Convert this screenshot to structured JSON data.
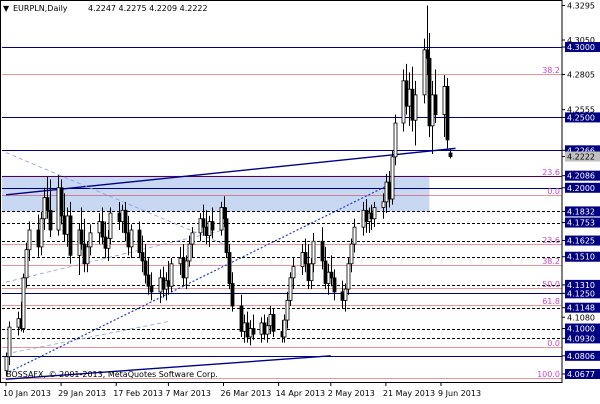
{
  "header": {
    "arrow_glyph": "▼",
    "symbol_timeframe": "EURPLN,Daily",
    "ohlc": "4.2247 4.2275 4.2209 4.2222"
  },
  "watermark": "BOSSAFX, © 2001-2013, MetaQuotes Software Corp.",
  "colors": {
    "background": "#ffffff",
    "candle": "#000000",
    "level_line": "#000080",
    "ma_trend_line": "#00008b",
    "fibo_line": "#cc0000",
    "fibo_label": "#cc44cc",
    "dotted_trend": "#1f3bd6",
    "light_trend": "#8a9ee0",
    "zone_fill": "#c8d7f2",
    "price_box": "#000080",
    "current_price_box": "#c0c0c0"
  },
  "chart_data": {
    "type": "candlestick",
    "symbol": "EURPLN",
    "timeframe": "Daily",
    "ylim": [
      4.062,
      4.332
    ],
    "x_tick_labels": [
      "10 Jan 2013",
      "29 Jan 2013",
      "17 Feb 2013",
      "7 Mar 2013",
      "26 Mar 2013",
      "14 Apr 2013",
      "2 May 2013",
      "21 May 2013",
      "9 Jun 2013"
    ],
    "y_tick_labels": [
      {
        "value": 4.3295,
        "label": "4.3295",
        "boxed": false
      },
      {
        "value": 4.305,
        "label": "4.3050",
        "boxed": false
      },
      {
        "value": 4.3,
        "label": "4.3000",
        "boxed": true
      },
      {
        "value": 4.2805,
        "label": "4.2805",
        "boxed": false
      },
      {
        "value": 4.2555,
        "label": "4.2555",
        "boxed": false
      },
      {
        "value": 4.25,
        "label": "4.2500",
        "boxed": true
      },
      {
        "value": 4.2266,
        "label": "4.2266",
        "boxed": true
      },
      {
        "value": 4.2222,
        "label": "4.2222",
        "boxed": "current"
      },
      {
        "value": 4.2086,
        "label": "4.2086",
        "boxed": true
      },
      {
        "value": 4.2,
        "label": "4.2000",
        "boxed": true
      },
      {
        "value": 4.1832,
        "label": "4.1832",
        "boxed": true
      },
      {
        "value": 4.1753,
        "label": "4.1753",
        "boxed": true
      },
      {
        "value": 4.1625,
        "label": "4.1625",
        "boxed": true
      },
      {
        "value": 4.151,
        "label": "4.1510",
        "boxed": true
      },
      {
        "value": 4.131,
        "label": "4.1310",
        "boxed": true
      },
      {
        "value": 4.125,
        "label": "4.1250",
        "boxed": true
      },
      {
        "value": 4.1148,
        "label": "4.1148",
        "boxed": true
      },
      {
        "value": 4.108,
        "label": "4.1080",
        "boxed": false
      },
      {
        "value": 4.1,
        "label": "4.1000",
        "boxed": true
      },
      {
        "value": 4.093,
        "label": "4.0930",
        "boxed": true
      },
      {
        "value": 4.0806,
        "label": "4.0806",
        "boxed": true
      },
      {
        "value": 4.0677,
        "label": "4.0677",
        "boxed": true
      }
    ],
    "horizontal_levels": [
      {
        "value": 4.3,
        "style": "solid",
        "color": "#000080"
      },
      {
        "value": 4.25,
        "style": "solid",
        "color": "#000080"
      },
      {
        "value": 4.2266,
        "style": "solid",
        "color": "#000080"
      },
      {
        "value": 4.2086,
        "style": "solid",
        "color": "#000080"
      },
      {
        "value": 4.2,
        "style": "solid",
        "color": "#000080"
      },
      {
        "value": 4.1832,
        "style": "dashed",
        "color": "#000000"
      },
      {
        "value": 4.1753,
        "style": "dashed",
        "color": "#000000"
      },
      {
        "value": 4.1625,
        "style": "dashed",
        "color": "#000000"
      },
      {
        "value": 4.151,
        "style": "dashed",
        "color": "#000000"
      },
      {
        "value": 4.131,
        "style": "dashed",
        "color": "#000000"
      },
      {
        "value": 4.125,
        "style": "solid",
        "color": "#000080"
      },
      {
        "value": 4.1148,
        "style": "dashed",
        "color": "#000000"
      },
      {
        "value": 4.1,
        "style": "dashed",
        "color": "#000000"
      },
      {
        "value": 4.093,
        "style": "dashed",
        "color": "#000000"
      },
      {
        "value": 4.0806,
        "style": "solid",
        "color": "#000080"
      }
    ],
    "fibonacci": [
      {
        "label": "38.2",
        "value": 4.2805
      },
      {
        "label": "23.6",
        "value": 4.2086
      },
      {
        "label": "0.0",
        "value": 4.195
      },
      {
        "label": "23.6",
        "value": 4.16
      },
      {
        "label": "38.2",
        "value": 4.145
      },
      {
        "label": "50.0",
        "value": 4.129
      },
      {
        "label": "61.8",
        "value": 4.117
      },
      {
        "label": "0.0",
        "value": 4.087
      },
      {
        "label": "100.0",
        "value": 4.065
      }
    ],
    "zone": {
      "from": 4.2086,
      "to": 4.1832,
      "x_from": "10 Jan 2013",
      "x_to": "5 Jun 2013"
    },
    "trend_lines": [
      {
        "style": "solid",
        "from": [
          "10 Jan 2013",
          4.195
        ],
        "to": [
          "14 Jun 2013",
          4.228
        ]
      },
      {
        "style": "solid",
        "from": [
          "10 Jan 2013",
          4.064
        ],
        "to": [
          "2 May 2013",
          4.0806
        ]
      },
      {
        "style": "dotted",
        "from": [
          "10 Jan 2013",
          4.068
        ],
        "to": [
          "21 May 2013",
          4.201
        ]
      },
      {
        "style": "dashed-light",
        "from": [
          "10 Jan 2013",
          4.225
        ],
        "to": [
          "26 Mar 2013",
          4.16
        ]
      },
      {
        "style": "dashed-light",
        "from": [
          "10 Jan 2013",
          4.133
        ],
        "to": [
          "26 Mar 2013",
          4.17
        ]
      },
      {
        "style": "dashed-light",
        "from": [
          "10 Jan 2013",
          4.082
        ],
        "to": [
          "7 Mar 2013",
          4.105
        ]
      }
    ],
    "candles": [
      {
        "t": "10 Jan 2013",
        "o": 4.07,
        "h": 4.083,
        "l": 4.066,
        "c": 4.08
      },
      {
        "t": "11 Jan 2013",
        "o": 4.08,
        "h": 4.105,
        "l": 4.074,
        "c": 4.101
      },
      {
        "t": "14 Jan 2013",
        "o": 4.101,
        "h": 4.112,
        "l": 4.095,
        "c": 4.107
      },
      {
        "t": "15 Jan 2013",
        "o": 4.107,
        "h": 4.119,
        "l": 4.098,
        "c": 4.1
      },
      {
        "t": "16 Jan 2013",
        "o": 4.1,
        "h": 4.139,
        "l": 4.097,
        "c": 4.136
      },
      {
        "t": "17 Jan 2013",
        "o": 4.136,
        "h": 4.161,
        "l": 4.129,
        "c": 4.156
      },
      {
        "t": "18 Jan 2013",
        "o": 4.156,
        "h": 4.176,
        "l": 4.148,
        "c": 4.17
      },
      {
        "t": "21 Jan 2013",
        "o": 4.17,
        "h": 4.181,
        "l": 4.151,
        "c": 4.158
      },
      {
        "t": "22 Jan 2013",
        "o": 4.158,
        "h": 4.183,
        "l": 4.152,
        "c": 4.178
      },
      {
        "t": "23 Jan 2013",
        "o": 4.178,
        "h": 4.2,
        "l": 4.17,
        "c": 4.193
      },
      {
        "t": "24 Jan 2013",
        "o": 4.193,
        "h": 4.208,
        "l": 4.178,
        "c": 4.184
      },
      {
        "t": "25 Jan 2013",
        "o": 4.184,
        "h": 4.206,
        "l": 4.165,
        "c": 4.17
      },
      {
        "t": "28 Jan 2013",
        "o": 4.17,
        "h": 4.209,
        "l": 4.166,
        "c": 4.2
      },
      {
        "t": "29 Jan 2013",
        "o": 4.2,
        "h": 4.206,
        "l": 4.174,
        "c": 4.18
      },
      {
        "t": "30 Jan 2013",
        "o": 4.18,
        "h": 4.196,
        "l": 4.162,
        "c": 4.167
      },
      {
        "t": "31 Jan 2013",
        "o": 4.167,
        "h": 4.186,
        "l": 4.158,
        "c": 4.18
      },
      {
        "t": "1 Feb 2013",
        "o": 4.18,
        "h": 4.19,
        "l": 4.146,
        "c": 4.152
      },
      {
        "t": "4 Feb 2013",
        "o": 4.152,
        "h": 4.175,
        "l": 4.138,
        "c": 4.17
      },
      {
        "t": "5 Feb 2013",
        "o": 4.17,
        "h": 4.186,
        "l": 4.156,
        "c": 4.16
      },
      {
        "t": "6 Feb 2013",
        "o": 4.16,
        "h": 4.178,
        "l": 4.14,
        "c": 4.146
      },
      {
        "t": "7 Feb 2013",
        "o": 4.146,
        "h": 4.162,
        "l": 4.14,
        "c": 4.158
      },
      {
        "t": "8 Feb 2013",
        "o": 4.158,
        "h": 4.174,
        "l": 4.152,
        "c": 4.168
      },
      {
        "t": "11 Feb 2013",
        "o": 4.168,
        "h": 4.182,
        "l": 4.16,
        "c": 4.176
      },
      {
        "t": "12 Feb 2013",
        "o": 4.176,
        "h": 4.186,
        "l": 4.16,
        "c": 4.165
      },
      {
        "t": "13 Feb 2013",
        "o": 4.165,
        "h": 4.176,
        "l": 4.15,
        "c": 4.157
      },
      {
        "t": "14 Feb 2013",
        "o": 4.157,
        "h": 4.17,
        "l": 4.148,
        "c": 4.164
      },
      {
        "t": "15 Feb 2013",
        "o": 4.164,
        "h": 4.186,
        "l": 4.16,
        "c": 4.182
      },
      {
        "t": "18 Feb 2013",
        "o": 4.182,
        "h": 4.19,
        "l": 4.17,
        "c": 4.176
      },
      {
        "t": "19 Feb 2013",
        "o": 4.176,
        "h": 4.188,
        "l": 4.168,
        "c": 4.184
      },
      {
        "t": "20 Feb 2013",
        "o": 4.184,
        "h": 4.19,
        "l": 4.162,
        "c": 4.168
      },
      {
        "t": "21 Feb 2013",
        "o": 4.168,
        "h": 4.18,
        "l": 4.152,
        "c": 4.158
      },
      {
        "t": "22 Feb 2013",
        "o": 4.158,
        "h": 4.174,
        "l": 4.15,
        "c": 4.17
      },
      {
        "t": "25 Feb 2013",
        "o": 4.17,
        "h": 4.176,
        "l": 4.15,
        "c": 4.154
      },
      {
        "t": "26 Feb 2013",
        "o": 4.154,
        "h": 4.166,
        "l": 4.14,
        "c": 4.148
      },
      {
        "t": "27 Feb 2013",
        "o": 4.148,
        "h": 4.16,
        "l": 4.132,
        "c": 4.138
      },
      {
        "t": "28 Feb 2013",
        "o": 4.138,
        "h": 4.15,
        "l": 4.124,
        "c": 4.13
      },
      {
        "t": "1 Mar 2013",
        "o": 4.13,
        "h": 4.14,
        "l": 4.12,
        "c": 4.126
      },
      {
        "t": "4 Mar 2013",
        "o": 4.126,
        "h": 4.142,
        "l": 4.118,
        "c": 4.136
      },
      {
        "t": "5 Mar 2013",
        "o": 4.136,
        "h": 4.144,
        "l": 4.122,
        "c": 4.128
      },
      {
        "t": "6 Mar 2013",
        "o": 4.128,
        "h": 4.14,
        "l": 4.12,
        "c": 4.134
      },
      {
        "t": "7 Mar 2013",
        "o": 4.134,
        "h": 4.148,
        "l": 4.124,
        "c": 4.13
      },
      {
        "t": "8 Mar 2013",
        "o": 4.13,
        "h": 4.15,
        "l": 4.126,
        "c": 4.146
      },
      {
        "t": "11 Mar 2013",
        "o": 4.146,
        "h": 4.158,
        "l": 4.138,
        "c": 4.15
      },
      {
        "t": "12 Mar 2013",
        "o": 4.15,
        "h": 4.16,
        "l": 4.13,
        "c": 4.136
      },
      {
        "t": "13 Mar 2013",
        "o": 4.136,
        "h": 4.152,
        "l": 4.128,
        "c": 4.148
      },
      {
        "t": "14 Mar 2013",
        "o": 4.148,
        "h": 4.166,
        "l": 4.144,
        "c": 4.16
      },
      {
        "t": "15 Mar 2013",
        "o": 4.16,
        "h": 4.172,
        "l": 4.15,
        "c": 4.168
      },
      {
        "t": "18 Mar 2013",
        "o": 4.168,
        "h": 4.182,
        "l": 4.162,
        "c": 4.178
      },
      {
        "t": "19 Mar 2013",
        "o": 4.178,
        "h": 4.188,
        "l": 4.166,
        "c": 4.172
      },
      {
        "t": "20 Mar 2013",
        "o": 4.172,
        "h": 4.184,
        "l": 4.16,
        "c": 4.166
      },
      {
        "t": "21 Mar 2013",
        "o": 4.166,
        "h": 4.18,
        "l": 4.158,
        "c": 4.176
      },
      {
        "t": "22 Mar 2013",
        "o": 4.176,
        "h": 4.186,
        "l": 4.164,
        "c": 4.17
      },
      {
        "t": "25 Mar 2013",
        "o": 4.17,
        "h": 4.19,
        "l": 4.166,
        "c": 4.186
      },
      {
        "t": "26 Mar 2013",
        "o": 4.186,
        "h": 4.194,
        "l": 4.172,
        "c": 4.178
      },
      {
        "t": "27 Mar 2013",
        "o": 4.178,
        "h": 4.186,
        "l": 4.15,
        "c": 4.154
      },
      {
        "t": "28 Mar 2013",
        "o": 4.154,
        "h": 4.16,
        "l": 4.128,
        "c": 4.132
      },
      {
        "t": "29 Mar 2013",
        "o": 4.132,
        "h": 4.14,
        "l": 4.112,
        "c": 4.116
      },
      {
        "t": "1 Apr 2013",
        "o": 4.116,
        "h": 4.124,
        "l": 4.094,
        "c": 4.098
      },
      {
        "t": "2 Apr 2013",
        "o": 4.098,
        "h": 4.11,
        "l": 4.09,
        "c": 4.104
      },
      {
        "t": "3 Apr 2013",
        "o": 4.104,
        "h": 4.112,
        "l": 4.09,
        "c": 4.094
      },
      {
        "t": "4 Apr 2013",
        "o": 4.094,
        "h": 4.106,
        "l": 4.088,
        "c": 4.1
      },
      {
        "t": "5 Apr 2013",
        "o": 4.1,
        "h": 4.11,
        "l": 4.092,
        "c": 4.096
      },
      {
        "t": "8 Apr 2013",
        "o": 4.096,
        "h": 4.108,
        "l": 4.09,
        "c": 4.104
      },
      {
        "t": "9 Apr 2013",
        "o": 4.104,
        "h": 4.11,
        "l": 4.092,
        "c": 4.096
      },
      {
        "t": "10 Apr 2013",
        "o": 4.096,
        "h": 4.108,
        "l": 4.09,
        "c": 4.102
      },
      {
        "t": "11 Apr 2013",
        "o": 4.102,
        "h": 4.116,
        "l": 4.096,
        "c": 4.11
      },
      {
        "t": "12 Apr 2013",
        "o": 4.11,
        "h": 4.114,
        "l": 4.094,
        "c": 4.098
      },
      {
        "t": "15 Apr 2013",
        "o": 4.098,
        "h": 4.106,
        "l": 4.09,
        "c": 4.094
      },
      {
        "t": "16 Apr 2013",
        "o": 4.094,
        "h": 4.11,
        "l": 4.09,
        "c": 4.106
      },
      {
        "t": "17 Apr 2013",
        "o": 4.106,
        "h": 4.126,
        "l": 4.1,
        "c": 4.12
      },
      {
        "t": "18 Apr 2013",
        "o": 4.12,
        "h": 4.14,
        "l": 4.116,
        "c": 4.136
      },
      {
        "t": "19 Apr 2013",
        "o": 4.136,
        "h": 4.15,
        "l": 4.128,
        "c": 4.144
      },
      {
        "t": "22 Apr 2013",
        "o": 4.144,
        "h": 4.16,
        "l": 4.138,
        "c": 4.154
      },
      {
        "t": "23 Apr 2013",
        "o": 4.154,
        "h": 4.164,
        "l": 4.14,
        "c": 4.146
      },
      {
        "t": "24 Apr 2013",
        "o": 4.146,
        "h": 4.16,
        "l": 4.128,
        "c": 4.134
      },
      {
        "t": "25 Apr 2013",
        "o": 4.134,
        "h": 4.15,
        "l": 4.128,
        "c": 4.146
      },
      {
        "t": "26 Apr 2013",
        "o": 4.146,
        "h": 4.168,
        "l": 4.14,
        "c": 4.162
      },
      {
        "t": "29 Apr 2013",
        "o": 4.162,
        "h": 4.172,
        "l": 4.142,
        "c": 4.148
      },
      {
        "t": "30 Apr 2013",
        "o": 4.148,
        "h": 4.158,
        "l": 4.128,
        "c": 4.132
      },
      {
        "t": "1 May 2013",
        "o": 4.132,
        "h": 4.146,
        "l": 4.124,
        "c": 4.14
      },
      {
        "t": "2 May 2013",
        "o": 4.14,
        "h": 4.152,
        "l": 4.13,
        "c": 4.136
      },
      {
        "t": "3 May 2013",
        "o": 4.136,
        "h": 4.142,
        "l": 4.12,
        "c": 4.126
      },
      {
        "t": "6 May 2013",
        "o": 4.126,
        "h": 4.134,
        "l": 4.114,
        "c": 4.12
      },
      {
        "t": "7 May 2013",
        "o": 4.12,
        "h": 4.132,
        "l": 4.112,
        "c": 4.128
      },
      {
        "t": "8 May 2013",
        "o": 4.128,
        "h": 4.15,
        "l": 4.124,
        "c": 4.146
      },
      {
        "t": "9 May 2013",
        "o": 4.146,
        "h": 4.164,
        "l": 4.14,
        "c": 4.16
      },
      {
        "t": "10 May 2013",
        "o": 4.16,
        "h": 4.178,
        "l": 4.154,
        "c": 4.172
      },
      {
        "t": "13 May 2013",
        "o": 4.172,
        "h": 4.19,
        "l": 4.166,
        "c": 4.184
      },
      {
        "t": "14 May 2013",
        "o": 4.184,
        "h": 4.192,
        "l": 4.168,
        "c": 4.176
      },
      {
        "t": "15 May 2013",
        "o": 4.176,
        "h": 4.186,
        "l": 4.168,
        "c": 4.182
      },
      {
        "t": "16 May 2013",
        "o": 4.182,
        "h": 4.188,
        "l": 4.17,
        "c": 4.178
      },
      {
        "t": "17 May 2013",
        "o": 4.178,
        "h": 4.19,
        "l": 4.172,
        "c": 4.186
      },
      {
        "t": "20 May 2013",
        "o": 4.186,
        "h": 4.196,
        "l": 4.178,
        "c": 4.19
      },
      {
        "t": "21 May 2013",
        "o": 4.19,
        "h": 4.21,
        "l": 4.182,
        "c": 4.204
      },
      {
        "t": "22 May 2013",
        "o": 4.204,
        "h": 4.212,
        "l": 4.186,
        "c": 4.192
      },
      {
        "t": "23 May 2013",
        "o": 4.192,
        "h": 4.226,
        "l": 4.188,
        "c": 4.222
      },
      {
        "t": "24 May 2013",
        "o": 4.222,
        "h": 4.252,
        "l": 4.216,
        "c": 4.246
      },
      {
        "t": "27 May 2013",
        "o": 4.246,
        "h": 4.284,
        "l": 4.24,
        "c": 4.276
      },
      {
        "t": "28 May 2013",
        "o": 4.276,
        "h": 4.288,
        "l": 4.252,
        "c": 4.258
      },
      {
        "t": "29 May 2013",
        "o": 4.258,
        "h": 4.282,
        "l": 4.244,
        "c": 4.27
      },
      {
        "t": "30 May 2013",
        "o": 4.27,
        "h": 4.286,
        "l": 4.24,
        "c": 4.248
      },
      {
        "t": "31 May 2013",
        "o": 4.248,
        "h": 4.276,
        "l": 4.23,
        "c": 4.266
      },
      {
        "t": "3 Jun 2013",
        "o": 4.266,
        "h": 4.306,
        "l": 4.26,
        "c": 4.298
      },
      {
        "t": "4 Jun 2013",
        "o": 4.298,
        "h": 4.3295,
        "l": 4.28,
        "c": 4.292
      },
      {
        "t": "5 Jun 2013",
        "o": 4.292,
        "h": 4.31,
        "l": 4.236,
        "c": 4.244
      },
      {
        "t": "6 Jun 2013",
        "o": 4.244,
        "h": 4.276,
        "l": 4.224,
        "c": 4.266
      },
      {
        "t": "7 Jun 2013",
        "o": 4.266,
        "h": 4.284,
        "l": 4.246,
        "c": 4.252
      },
      {
        "t": "10 Jun 2013",
        "o": 4.252,
        "h": 4.28,
        "l": 4.236,
        "c": 4.272
      },
      {
        "t": "11 Jun 2013",
        "o": 4.272,
        "h": 4.278,
        "l": 4.228,
        "c": 4.234
      },
      {
        "t": "12 Jun 2013",
        "o": 4.2247,
        "h": 4.2275,
        "l": 4.2209,
        "c": 4.2222
      }
    ]
  }
}
